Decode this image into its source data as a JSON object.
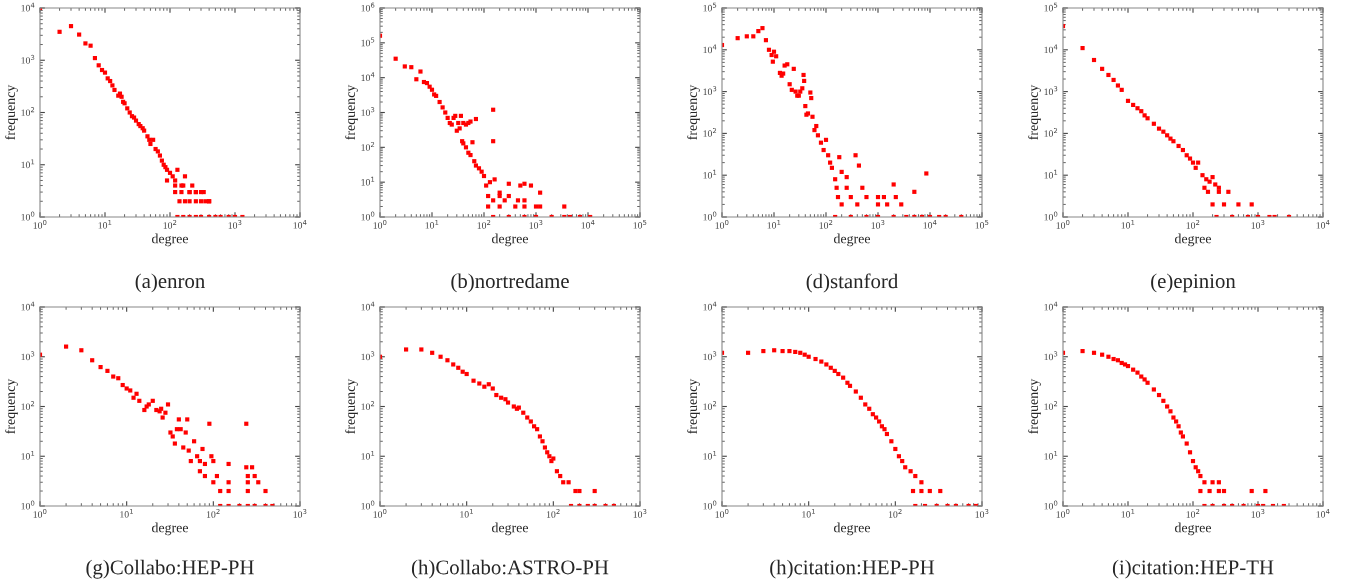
{
  "chart_data": [
    {
      "type": "scatter",
      "title": "(a)enron",
      "xlabel": "degree",
      "ylabel": "frequency",
      "log": "xy",
      "marker": "square",
      "xlim": [
        1,
        10000
      ],
      "ylim": [
        1,
        10000
      ],
      "xticks": [
        {
          "value": 1,
          "label": "10$^{0}$"
        },
        {
          "value": 10,
          "label": "10$^{1}$"
        },
        {
          "value": 100,
          "label": "10$^{2}$"
        },
        {
          "value": 1000,
          "label": "10$^{3}$"
        },
        {
          "value": 10000,
          "label": "10$^{4}$"
        }
      ],
      "yticks": [
        {
          "value": 1,
          "label": "10$^{0}$"
        },
        {
          "value": 10,
          "label": "10$^{1}$"
        },
        {
          "value": 100,
          "label": "10$^{2}$"
        },
        {
          "value": 1000,
          "label": "10$^{3}$"
        },
        {
          "value": 10000,
          "label": "10$^{4}$"
        }
      ],
      "series": [
        {
          "color": "#ff0000",
          "x": [
            1,
            2,
            3,
            4,
            5,
            6,
            7,
            8,
            9,
            10,
            11,
            12,
            13,
            14,
            16,
            17,
            18,
            19,
            20,
            22,
            24,
            26,
            28,
            30,
            33,
            35,
            38,
            40,
            45,
            48,
            50,
            55,
            60,
            65,
            70,
            75,
            80,
            85,
            90,
            100,
            110,
            120,
            130,
            150,
            170,
            200,
            250,
            300,
            350,
            400,
            90,
            120,
            160,
            220,
            120,
            150,
            200,
            250,
            330,
            140,
            170,
            200,
            250,
            300,
            400,
            130,
            160,
            200,
            250,
            300,
            400,
            500,
            600,
            800,
            1000,
            1300
          ],
          "values": [
            10000,
            3500,
            4500,
            3100,
            2100,
            1900,
            1100,
            800,
            650,
            580,
            450,
            400,
            330,
            270,
            210,
            230,
            200,
            160,
            150,
            120,
            100,
            85,
            80,
            70,
            60,
            55,
            50,
            45,
            35,
            30,
            25,
            30,
            20,
            18,
            15,
            12,
            10,
            9,
            8,
            7,
            6,
            5,
            8,
            4,
            6,
            3,
            3,
            3,
            2,
            2,
            5,
            4,
            4,
            4,
            3,
            3,
            3,
            3,
            3,
            2,
            2,
            2,
            2,
            2,
            2,
            1,
            1,
            1,
            1,
            1,
            1,
            1,
            1,
            1,
            1,
            1
          ]
        }
      ]
    },
    {
      "type": "scatter",
      "title": "(b)nortredame",
      "xlabel": "degree",
      "ylabel": "frequency",
      "log": "xy",
      "marker": "square",
      "xlim": [
        1,
        100000
      ],
      "ylim": [
        1,
        1000000
      ],
      "xticks": [
        {
          "value": 1,
          "label": "10$^{0}$"
        },
        {
          "value": 10,
          "label": "10$^{1}$"
        },
        {
          "value": 100,
          "label": "10$^{2}$"
        },
        {
          "value": 1000,
          "label": "10$^{3}$"
        },
        {
          "value": 10000,
          "label": "10$^{4}$"
        },
        {
          "value": 100000,
          "label": "10$^{5}$"
        }
      ],
      "yticks": [
        {
          "value": 1,
          "label": "10$^{0}$"
        },
        {
          "value": 10,
          "label": "10$^{1}$"
        },
        {
          "value": 100,
          "label": "10$^{2}$"
        },
        {
          "value": 1000,
          "label": "10$^{3}$"
        },
        {
          "value": 10000,
          "label": "10$^{4}$"
        },
        {
          "value": 100000,
          "label": "10$^{5}$"
        },
        {
          "value": 1000000,
          "label": "10$^{6}$"
        }
      ],
      "series": [
        {
          "color": "#ff0000",
          "x": [
            1,
            2,
            3,
            4,
            5,
            6,
            7,
            8,
            9,
            10,
            11,
            12,
            14,
            16,
            18,
            20,
            22,
            24,
            26,
            28,
            30,
            32,
            34,
            36,
            40,
            45,
            50,
            55,
            70,
            150,
            150,
            38,
            40,
            45,
            50,
            55,
            60,
            65,
            70,
            80,
            90,
            100,
            110,
            130,
            160,
            200,
            300,
            500,
            600,
            800,
            1200,
            120,
            200,
            300,
            150,
            250,
            450,
            600,
            120,
            200,
            400,
            600,
            1000,
            1200,
            3500,
            150,
            300,
            600,
            1000,
            2000,
            3500,
            4500,
            7000,
            11000
          ],
          "values": [
            160000,
            35000,
            21000,
            20000,
            9000,
            15000,
            7500,
            7000,
            5500,
            4500,
            3300,
            3000,
            2000,
            1400,
            1000,
            700,
            500,
            450,
            700,
            800,
            300,
            500,
            350,
            800,
            500,
            450,
            500,
            550,
            650,
            1200,
            150,
            150,
            130,
            100,
            70,
            60,
            140,
            40,
            30,
            25,
            20,
            15,
            8,
            10,
            12,
            5,
            9,
            8,
            9,
            8,
            5,
            4,
            4,
            4,
            3,
            3,
            3,
            3,
            2,
            2,
            2,
            2,
            2,
            2,
            2,
            1,
            1,
            1,
            1,
            1,
            1,
            1,
            1,
            1
          ]
        }
      ]
    },
    {
      "type": "scatter",
      "title": "(d)stanford",
      "xlabel": "degree",
      "ylabel": "frequency",
      "log": "xy",
      "marker": "square",
      "xlim": [
        1,
        100000
      ],
      "ylim": [
        1,
        100000
      ],
      "xticks": [
        {
          "value": 1,
          "label": "10$^{0}$"
        },
        {
          "value": 10,
          "label": "10$^{1}$"
        },
        {
          "value": 100,
          "label": "10$^{2}$"
        },
        {
          "value": 1000,
          "label": "10$^{3}$"
        },
        {
          "value": 10000,
          "label": "10$^{4}$"
        },
        {
          "value": 100000,
          "label": "10$^{5}$"
        }
      ],
      "yticks": [
        {
          "value": 1,
          "label": "10$^{0}$"
        },
        {
          "value": 10,
          "label": "10$^{1}$"
        },
        {
          "value": 100,
          "label": "10$^{2}$"
        },
        {
          "value": 1000,
          "label": "10$^{3}$"
        },
        {
          "value": 10000,
          "label": "10$^{4}$"
        },
        {
          "value": 100000,
          "label": "10$^{5}$"
        }
      ],
      "series": [
        {
          "color": "#ff0000",
          "x": [
            1,
            2,
            3,
            4,
            5,
            6,
            7,
            8,
            9,
            9.5,
            10,
            11,
            13,
            14,
            15,
            16,
            18,
            20,
            22,
            24,
            26,
            28,
            30,
            32,
            35,
            37,
            38,
            40,
            42,
            45,
            50,
            52,
            55,
            60,
            65,
            70,
            80,
            90,
            100,
            110,
            120,
            130,
            150,
            180,
            200,
            250,
            370,
            430,
            8500,
            2000,
            5000,
            160,
            250,
            500,
            170,
            300,
            600,
            1000,
            1300,
            2200,
            200,
            400,
            1000,
            1500,
            2800,
            150,
            300,
            600,
            1000,
            2000,
            3500,
            5000,
            7000,
            10000,
            15000,
            20000,
            40000
          ],
          "values": [
            13000,
            19000,
            21000,
            21000,
            28000,
            33000,
            17000,
            10000,
            7500,
            5200,
            9000,
            7000,
            2800,
            2400,
            2700,
            4200,
            4500,
            1500,
            1100,
            3500,
            1000,
            800,
            800,
            1000,
            1200,
            2500,
            1800,
            450,
            280,
            300,
            950,
            700,
            250,
            120,
            150,
            90,
            60,
            40,
            70,
            30,
            20,
            15,
            8,
            27,
            12,
            9,
            30,
            17,
            11,
            6,
            4,
            5,
            5,
            5,
            3,
            3,
            3,
            3,
            3,
            3,
            2,
            2,
            2,
            2,
            2,
            1,
            1,
            1,
            1,
            1,
            1,
            1,
            1,
            1,
            1,
            1,
            1
          ]
        }
      ]
    },
    {
      "type": "scatter",
      "title": "(e)epinion",
      "xlabel": "degree",
      "ylabel": "frequency",
      "log": "xy",
      "marker": "square",
      "xlim": [
        1,
        10000
      ],
      "ylim": [
        1,
        100000
      ],
      "xticks": [
        {
          "value": 1,
          "label": "10$^{0}$"
        },
        {
          "value": 10,
          "label": "10$^{1}$"
        },
        {
          "value": 100,
          "label": "10$^{2}$"
        },
        {
          "value": 1000,
          "label": "10$^{3}$"
        },
        {
          "value": 10000,
          "label": "10$^{4}$"
        }
      ],
      "yticks": [
        {
          "value": 1,
          "label": "10$^{0}$"
        },
        {
          "value": 10,
          "label": "10$^{1}$"
        },
        {
          "value": 100,
          "label": "10$^{2}$"
        },
        {
          "value": 1000,
          "label": "10$^{3}$"
        },
        {
          "value": 10000,
          "label": "10$^{4}$"
        },
        {
          "value": 100000,
          "label": "10$^{5}$"
        }
      ],
      "series": [
        {
          "color": "#ff0000",
          "x": [
            1,
            2,
            3,
            4,
            5,
            6,
            7,
            8,
            10,
            12,
            14,
            16,
            18,
            20,
            25,
            30,
            35,
            40,
            45,
            50,
            60,
            70,
            80,
            90,
            100,
            110,
            120,
            140,
            150,
            160,
            180,
            200,
            220,
            250,
            170,
            250,
            350,
            200,
            300,
            500,
            800,
            230,
            400,
            700,
            1000,
            1500,
            1800,
            3000
          ],
          "values": [
            37000,
            11000,
            5700,
            3500,
            2500,
            1900,
            1400,
            1100,
            600,
            480,
            400,
            340,
            270,
            230,
            170,
            130,
            110,
            90,
            75,
            65,
            50,
            40,
            30,
            25,
            20,
            15,
            20,
            10,
            5,
            8,
            7,
            9,
            6,
            5,
            4,
            4,
            4,
            2,
            2,
            2,
            2,
            1,
            1,
            1,
            1,
            1,
            1,
            1
          ]
        }
      ]
    },
    {
      "type": "scatter",
      "title": "(g)Collabo:HEP-PH",
      "xlabel": "degree",
      "ylabel": "frequency",
      "log": "xy",
      "marker": "square",
      "xlim": [
        1,
        1000
      ],
      "ylim": [
        1,
        10000
      ],
      "xticks": [
        {
          "value": 1,
          "label": "10$^{0}$"
        },
        {
          "value": 10,
          "label": "10$^{1}$"
        },
        {
          "value": 100,
          "label": "10$^{2}$"
        },
        {
          "value": 1000,
          "label": "10$^{3}$"
        }
      ],
      "yticks": [
        {
          "value": 1,
          "label": "10$^{0}$"
        },
        {
          "value": 10,
          "label": "10$^{1}$"
        },
        {
          "value": 100,
          "label": "10$^{2}$"
        },
        {
          "value": 1000,
          "label": "10$^{3}$"
        },
        {
          "value": 10000,
          "label": "10$^{4}$"
        }
      ],
      "series": [
        {
          "color": "#ff0000",
          "x": [
            1,
            2,
            3,
            4,
            5,
            6,
            7,
            8,
            9,
            10,
            11,
            12,
            13,
            14,
            16,
            17,
            18,
            20,
            22,
            24,
            25,
            26,
            28,
            30,
            32,
            34,
            36,
            38,
            40,
            42,
            45,
            48,
            50,
            52,
            55,
            60,
            65,
            70,
            75,
            80,
            90,
            95,
            100,
            110,
            150,
            240,
            70,
            80,
            240,
            280,
            250,
            300,
            100,
            150,
            250,
            330,
            120,
            150,
            250,
            400,
            120,
            150,
            200,
            250,
            300,
            400,
            480
          ],
          "values": [
            1100,
            1600,
            1350,
            850,
            620,
            520,
            400,
            370,
            270,
            230,
            210,
            150,
            180,
            130,
            85,
            100,
            110,
            130,
            85,
            80,
            90,
            60,
            75,
            110,
            30,
            25,
            18,
            35,
            55,
            35,
            15,
            30,
            55,
            13,
            8,
            20,
            10,
            8,
            14,
            7,
            45,
            10,
            8,
            4,
            7,
            45,
            5,
            4,
            6,
            6,
            4,
            4,
            3,
            3,
            3,
            3,
            2,
            2,
            2,
            2,
            1,
            1,
            1,
            1,
            1,
            1,
            1
          ]
        }
      ]
    },
    {
      "type": "scatter",
      "title": "(h)Collabo:ASTRO-PH",
      "xlabel": "degree",
      "ylabel": "frequency",
      "log": "xy",
      "marker": "square",
      "xlim": [
        1,
        1000
      ],
      "ylim": [
        1,
        10000
      ],
      "xticks": [
        {
          "value": 1,
          "label": "10$^{0}$"
        },
        {
          "value": 10,
          "label": "10$^{1}$"
        },
        {
          "value": 100,
          "label": "10$^{2}$"
        },
        {
          "value": 1000,
          "label": "10$^{3}$"
        }
      ],
      "yticks": [
        {
          "value": 1,
          "label": "10$^{0}$"
        },
        {
          "value": 10,
          "label": "10$^{1}$"
        },
        {
          "value": 100,
          "label": "10$^{2}$"
        },
        {
          "value": 1000,
          "label": "10$^{3}$"
        },
        {
          "value": 10000,
          "label": "10$^{4}$"
        }
      ],
      "series": [
        {
          "color": "#ff0000",
          "x": [
            1,
            2,
            3,
            4,
            5,
            6,
            7,
            8,
            9,
            10,
            12,
            14,
            16,
            18,
            20,
            22,
            25,
            28,
            30,
            35,
            38,
            40,
            45,
            50,
            55,
            60,
            65,
            70,
            75,
            80,
            85,
            90,
            95,
            100,
            110,
            120,
            130,
            150,
            180,
            200,
            300,
            160,
            200,
            250,
            300,
            400,
            500
          ],
          "values": [
            1000,
            1400,
            1400,
            1200,
            1000,
            850,
            700,
            600,
            500,
            450,
            330,
            290,
            250,
            280,
            230,
            170,
            150,
            140,
            120,
            100,
            90,
            95,
            75,
            60,
            50,
            40,
            35,
            25,
            20,
            15,
            12,
            10,
            8,
            9,
            5,
            4,
            3,
            3,
            2,
            2,
            2,
            1,
            1,
            1,
            1,
            1,
            1
          ]
        }
      ]
    },
    {
      "type": "scatter",
      "title": "(h)citation:HEP-PH",
      "xlabel": "degree",
      "ylabel": "frequency",
      "log": "xy",
      "marker": "square",
      "xlim": [
        1,
        1000
      ],
      "ylim": [
        1,
        10000
      ],
      "xticks": [
        {
          "value": 1,
          "label": "10$^{0}$"
        },
        {
          "value": 10,
          "label": "10$^{1}$"
        },
        {
          "value": 100,
          "label": "10$^{2}$"
        },
        {
          "value": 1000,
          "label": "10$^{3}$"
        }
      ],
      "yticks": [
        {
          "value": 1,
          "label": "10$^{0}$"
        },
        {
          "value": 10,
          "label": "10$^{1}$"
        },
        {
          "value": 100,
          "label": "10$^{2}$"
        },
        {
          "value": 1000,
          "label": "10$^{3}$"
        },
        {
          "value": 10000,
          "label": "10$^{4}$"
        }
      ],
      "series": [
        {
          "color": "#ff0000",
          "x": [
            1,
            2,
            3,
            4,
            5,
            6,
            7,
            8,
            9,
            10,
            12,
            14,
            16,
            18,
            20,
            22,
            25,
            28,
            30,
            35,
            40,
            45,
            50,
            55,
            60,
            65,
            70,
            75,
            80,
            90,
            100,
            110,
            120,
            130,
            150,
            170,
            200,
            160,
            200,
            250,
            330,
            170,
            220,
            300,
            400,
            500,
            700,
            850
          ],
          "values": [
            1200,
            1200,
            1300,
            1350,
            1300,
            1300,
            1250,
            1200,
            1100,
            1000,
            900,
            800,
            700,
            600,
            520,
            450,
            380,
            300,
            260,
            200,
            150,
            110,
            90,
            70,
            60,
            50,
            40,
            35,
            28,
            20,
            14,
            10,
            8,
            6,
            5,
            4,
            3,
            2,
            2,
            2,
            2,
            1,
            1,
            1,
            1,
            1,
            1,
            1
          ]
        }
      ]
    },
    {
      "type": "scatter",
      "title": "(i)citation:HEP-TH",
      "xlabel": "degree",
      "ylabel": "frequency",
      "log": "xy",
      "marker": "square",
      "xlim": [
        1,
        10000
      ],
      "ylim": [
        1,
        10000
      ],
      "xticks": [
        {
          "value": 1,
          "label": "10$^{0}$"
        },
        {
          "value": 10,
          "label": "10$^{1}$"
        },
        {
          "value": 100,
          "label": "10$^{2}$"
        },
        {
          "value": 1000,
          "label": "10$^{3}$"
        },
        {
          "value": 10000,
          "label": "10$^{4}$"
        }
      ],
      "yticks": [
        {
          "value": 1,
          "label": "10$^{0}$"
        },
        {
          "value": 10,
          "label": "10$^{1}$"
        },
        {
          "value": 100,
          "label": "10$^{2}$"
        },
        {
          "value": 1000,
          "label": "10$^{3}$"
        },
        {
          "value": 10000,
          "label": "10$^{4}$"
        }
      ],
      "series": [
        {
          "color": "#ff0000",
          "x": [
            1,
            2,
            3,
            4,
            5,
            6,
            7,
            8,
            9,
            10,
            12,
            14,
            16,
            18,
            20,
            25,
            30,
            35,
            40,
            45,
            50,
            55,
            60,
            65,
            70,
            80,
            90,
            100,
            110,
            120,
            130,
            150,
            200,
            250,
            130,
            180,
            250,
            300,
            800,
            1300,
            150,
            200,
            300,
            400,
            600,
            1000,
            1200,
            1700,
            2500
          ],
          "values": [
            1200,
            1300,
            1200,
            1100,
            1000,
            900,
            850,
            750,
            700,
            650,
            550,
            480,
            400,
            350,
            300,
            220,
            170,
            130,
            100,
            80,
            60,
            50,
            40,
            30,
            25,
            18,
            12,
            8,
            6,
            5,
            4,
            3,
            3,
            3,
            2,
            2,
            2,
            2,
            2,
            2,
            1,
            1,
            1,
            1,
            1,
            1,
            1,
            1,
            1
          ]
        }
      ]
    }
  ]
}
